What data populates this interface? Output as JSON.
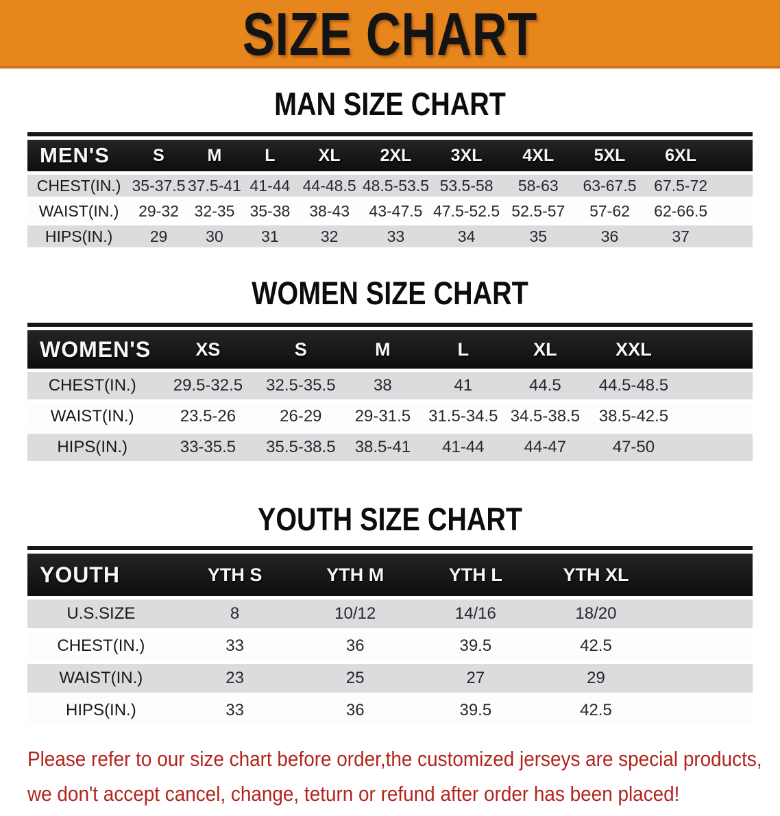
{
  "banner": {
    "title": "SIZE CHART",
    "bg_color": "#E8861E"
  },
  "sections": [
    {
      "heading": "MAN SIZE CHART",
      "table": {
        "header_label": "MEN'S",
        "columns": [
          "S",
          "M",
          "L",
          "XL",
          "2XL",
          "3XL",
          "4XL",
          "5XL",
          "6XL"
        ],
        "rows": [
          {
            "label": "CHEST(IN.)",
            "values": [
              "35-37.5",
              "37.5-41",
              "41-44",
              "44-48.5",
              "48.5-53.5",
              "53.5-58",
              "58-63",
              "63-67.5",
              "67.5-72"
            ]
          },
          {
            "label": "WAIST(IN.)",
            "values": [
              "29-32",
              "32-35",
              "35-38",
              "38-43",
              "43-47.5",
              "47.5-52.5",
              "52.5-57",
              "57-62",
              "62-66.5"
            ]
          },
          {
            "label": "HIPS(IN.)",
            "values": [
              "29",
              "30",
              "31",
              "32",
              "33",
              "34",
              "35",
              "36",
              "37"
            ]
          }
        ]
      }
    },
    {
      "heading": "WOMEN SIZE CHART",
      "table": {
        "header_label": "WOMEN'S",
        "columns": [
          "XS",
          "S",
          "M",
          "L",
          "XL",
          "XXL"
        ],
        "rows": [
          {
            "label": "CHEST(IN.)",
            "values": [
              "29.5-32.5",
              "32.5-35.5",
              "38",
              "41",
              "44.5",
              "44.5-48.5"
            ]
          },
          {
            "label": "WAIST(IN.)",
            "values": [
              "23.5-26",
              "26-29",
              "29-31.5",
              "31.5-34.5",
              "34.5-38.5",
              "38.5-42.5"
            ]
          },
          {
            "label": "HIPS(IN.)",
            "values": [
              "33-35.5",
              "35.5-38.5",
              "38.5-41",
              "41-44",
              "44-47",
              "47-50"
            ]
          }
        ]
      }
    },
    {
      "heading": "YOUTH SIZE CHART",
      "table": {
        "header_label": "YOUTH",
        "columns": [
          "YTH S",
          "YTH M",
          "YTH L",
          "YTH XL"
        ],
        "rows": [
          {
            "label": "U.S.SIZE",
            "values": [
              "8",
              "10/12",
              "14/16",
              "18/20"
            ]
          },
          {
            "label": "CHEST(IN.)",
            "values": [
              "33",
              "36",
              "39.5",
              "42.5"
            ]
          },
          {
            "label": "WAIST(IN.)",
            "values": [
              "23",
              "25",
              "27",
              "29"
            ]
          },
          {
            "label": "HIPS(IN.)",
            "values": [
              "33",
              "36",
              "39.5",
              "42.5"
            ]
          }
        ]
      }
    }
  ],
  "footer": {
    "line1": "Please refer to our size chart before order,the customized jerseys are special products,",
    "line2": "we don't accept cancel, change, teturn or refund after order has been placed!",
    "text_color": "#B3241D"
  }
}
